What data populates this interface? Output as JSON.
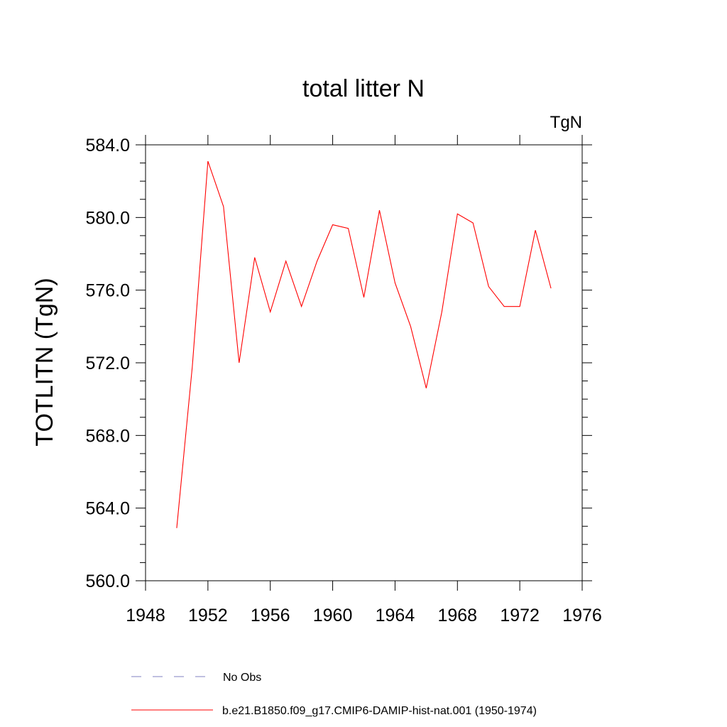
{
  "chart_data": {
    "type": "line",
    "title": "total litter N",
    "units_label": "TgN",
    "ylabel": "TOTLITN  (TgN)",
    "xlabel": "",
    "xlim": [
      1948,
      1976
    ],
    "ylim": [
      560,
      584
    ],
    "x_ticks": [
      1948,
      1952,
      1956,
      1960,
      1964,
      1968,
      1972,
      1976
    ],
    "x_tick_labels": [
      "1948",
      "1952",
      "1956",
      "1960",
      "1964",
      "1968",
      "1972",
      "1976"
    ],
    "y_ticks": [
      560,
      564,
      568,
      572,
      576,
      580,
      584
    ],
    "y_tick_labels": [
      "560.0",
      "564.0",
      "568.0",
      "572.0",
      "576.0",
      "580.0",
      "584.0"
    ],
    "grid": false,
    "legend_position": "bottom",
    "series": [
      {
        "name": "No Obs",
        "color": "#8080c0",
        "dash": "dashed",
        "x": [],
        "values": []
      },
      {
        "name": "b.e21.B1850.f09_g17.CMIP6-DAMIP-hist-nat.001 (1950-1974)",
        "color": "#ff0000",
        "dash": "solid",
        "x": [
          1950,
          1951,
          1952,
          1953,
          1954,
          1955,
          1956,
          1957,
          1958,
          1959,
          1960,
          1961,
          1962,
          1963,
          1964,
          1965,
          1966,
          1967,
          1968,
          1969,
          1970,
          1971,
          1972,
          1973,
          1974
        ],
        "values": [
          562.9,
          571.8,
          583.1,
          580.6,
          572.0,
          577.8,
          574.8,
          577.6,
          575.1,
          577.6,
          579.6,
          579.4,
          575.6,
          580.4,
          576.4,
          574.0,
          570.6,
          574.8,
          580.2,
          579.7,
          576.2,
          575.1,
          575.1,
          579.3,
          576.1
        ]
      }
    ]
  }
}
